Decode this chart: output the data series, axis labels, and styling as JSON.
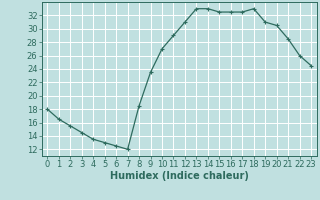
{
  "x": [
    0,
    1,
    2,
    3,
    4,
    5,
    6,
    7,
    8,
    9,
    10,
    11,
    12,
    13,
    14,
    15,
    16,
    17,
    18,
    19,
    20,
    21,
    22,
    23
  ],
  "y": [
    18,
    16.5,
    15.5,
    14.5,
    13.5,
    13,
    12.5,
    12,
    18.5,
    23.5,
    27,
    29,
    31,
    33,
    33,
    32.5,
    32.5,
    32.5,
    33,
    31,
    30.5,
    28.5,
    26,
    24.5
  ],
  "line_color": "#2e6b5e",
  "marker": "+",
  "marker_size": 3,
  "marker_linewidth": 0.8,
  "line_width": 0.9,
  "bg_color": "#c0e0e0",
  "grid_color": "#ffffff",
  "xlabel": "Humidex (Indice chaleur)",
  "xlim": [
    -0.5,
    23.5
  ],
  "ylim": [
    11,
    34
  ],
  "yticks": [
    12,
    14,
    16,
    18,
    20,
    22,
    24,
    26,
    28,
    30,
    32
  ],
  "xticks": [
    0,
    1,
    2,
    3,
    4,
    5,
    6,
    7,
    8,
    9,
    10,
    11,
    12,
    13,
    14,
    15,
    16,
    17,
    18,
    19,
    20,
    21,
    22,
    23
  ],
  "tick_label_fontsize": 6,
  "xlabel_fontsize": 7,
  "spine_color": "#2e6b5e",
  "tick_color": "#2e6b5e",
  "label_color": "#2e6b5e"
}
